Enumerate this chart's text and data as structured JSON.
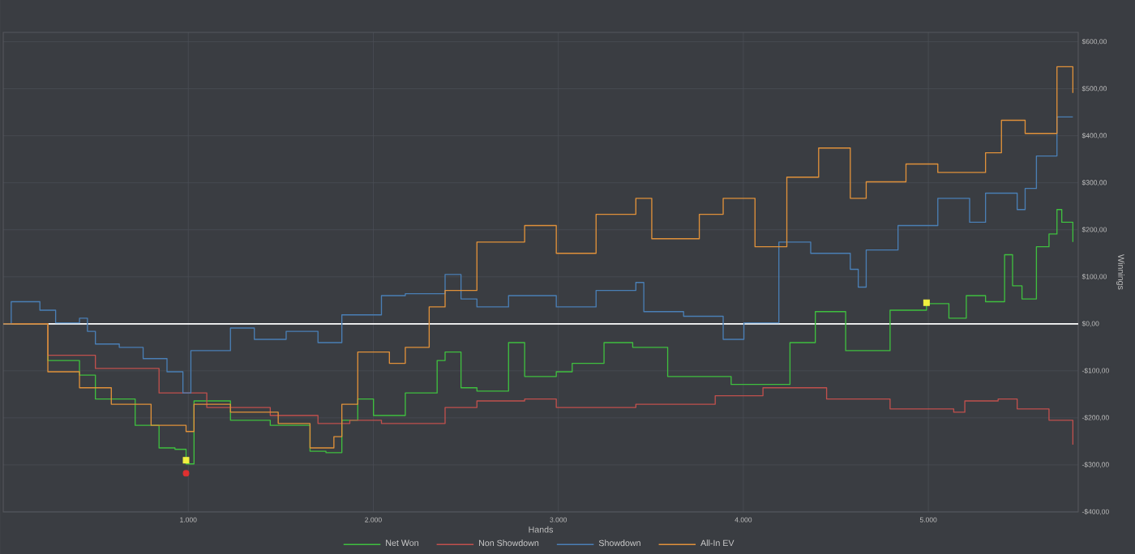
{
  "chart_data": {
    "type": "step",
    "xlabel": "Hands",
    "ylabel": "Winnings",
    "xlim": [
      0,
      5810
    ],
    "ylim": [
      -400,
      620
    ],
    "xticks": [
      {
        "value": 1000,
        "label": "1.000"
      },
      {
        "value": 2000,
        "label": "2.000"
      },
      {
        "value": 3000,
        "label": "3.000"
      },
      {
        "value": 4000,
        "label": "4.000"
      },
      {
        "value": 5000,
        "label": "5.000"
      }
    ],
    "yticks": [
      {
        "value": -400,
        "label": "-$400,00"
      },
      {
        "value": -300,
        "label": "-$300,00"
      },
      {
        "value": -200,
        "label": "-$200,00"
      },
      {
        "value": -100,
        "label": "-$100,00"
      },
      {
        "value": 0,
        "label": "$0,00"
      },
      {
        "value": 100,
        "label": "$100,00"
      },
      {
        "value": 200,
        "label": "$200,00"
      },
      {
        "value": 300,
        "label": "$300,00"
      },
      {
        "value": 400,
        "label": "$400,00"
      },
      {
        "value": 500,
        "label": "$500,00"
      },
      {
        "value": 600,
        "label": "$600,00"
      }
    ],
    "grid": true,
    "legend": "bottom",
    "ref_lines": [
      {
        "axis": "y",
        "value": 0,
        "color": "#ffffff"
      }
    ],
    "series": [
      {
        "name": "Net Won",
        "color": "#3fbf3f",
        "x": [
          0,
          241,
          412,
          498,
          713,
          842,
          928,
          988,
          1031,
          1228,
          1443,
          1658,
          1744,
          1830,
          1916,
          2001,
          2173,
          2345,
          2388,
          2474,
          2560,
          2731,
          2818,
          2989,
          3075,
          3247,
          3402,
          3591,
          3934,
          4252,
          4389,
          4510,
          4553,
          4767,
          4793,
          4990,
          5111,
          5205,
          5309,
          5412,
          5455,
          5506,
          5584,
          5652,
          5695,
          5721,
          5781
        ],
        "values": [
          0,
          -78,
          -109,
          -160,
          -216,
          -264,
          -267,
          -298,
          -164,
          -205,
          -216,
          -271,
          -274,
          -205,
          -160,
          -195,
          -147,
          -78,
          -60,
          -136,
          -143,
          -40,
          -112,
          -102,
          -84,
          -40,
          -50,
          -112,
          -129,
          -40,
          26,
          26,
          -57,
          -57,
          29,
          43,
          12,
          60,
          47,
          147,
          81,
          53,
          164,
          191,
          243,
          216,
          174
        ]
      },
      {
        "name": "Non Showdown",
        "color": "#c0504d",
        "x": [
          0,
          241,
          498,
          842,
          1100,
          1443,
          1701,
          1873,
          2044,
          2388,
          2560,
          2818,
          2989,
          3419,
          3848,
          4106,
          4450,
          4793,
          5137,
          5197,
          5377,
          5480,
          5652,
          5781
        ],
        "values": [
          0,
          -67,
          -95,
          -147,
          -178,
          -195,
          -212,
          -205,
          -212,
          -178,
          -164,
          -160,
          -178,
          -171,
          -153,
          -136,
          -160,
          -181,
          -188,
          -164,
          -160,
          -181,
          -205,
          -257
        ]
      },
      {
        "name": "Showdown",
        "color": "#4a7fb5",
        "x": [
          0,
          43,
          198,
          283,
          412,
          455,
          498,
          627,
          756,
          885,
          971,
          1014,
          1228,
          1357,
          1529,
          1701,
          1830,
          2044,
          2173,
          2388,
          2474,
          2560,
          2731,
          2989,
          3204,
          3419,
          3462,
          3677,
          3891,
          4003,
          4192,
          4364,
          4578,
          4621,
          4664,
          4836,
          5051,
          5223,
          5309,
          5480,
          5523,
          5584,
          5695,
          5781
        ],
        "values": [
          0,
          47,
          29,
          2,
          12,
          -16,
          -43,
          -50,
          -74,
          -102,
          -147,
          -57,
          -9,
          -33,
          -16,
          -40,
          19,
          60,
          64,
          105,
          53,
          36,
          60,
          36,
          71,
          88,
          26,
          16,
          -33,
          2,
          174,
          150,
          116,
          78,
          157,
          209,
          267,
          216,
          278,
          243,
          288,
          357,
          440,
          440
        ]
      },
      {
        "name": "All-In EV",
        "color": "#e0913a",
        "x": [
          0,
          241,
          412,
          584,
          799,
          988,
          1031,
          1228,
          1486,
          1658,
          1787,
          1830,
          1916,
          2087,
          2173,
          2302,
          2388,
          2560,
          2818,
          2989,
          3204,
          3419,
          3505,
          3762,
          3891,
          4063,
          4235,
          4407,
          4578,
          4664,
          4879,
          5051,
          5309,
          5395,
          5523,
          5695,
          5781
        ],
        "values": [
          0,
          -102,
          -136,
          -171,
          -216,
          -229,
          -171,
          -188,
          -212,
          -264,
          -240,
          -171,
          -60,
          -84,
          -50,
          36,
          71,
          174,
          209,
          150,
          233,
          267,
          181,
          233,
          267,
          164,
          312,
          374,
          267,
          302,
          340,
          322,
          364,
          433,
          405,
          547,
          491
        ]
      },
      {
        "type": "scatter",
        "marker": "square",
        "color": "#f0f040",
        "x": [
          988,
          4990
        ],
        "values": [
          -290,
          45
        ]
      },
      {
        "type": "scatter",
        "marker": "circle",
        "color": "#e03030",
        "x": [
          988
        ],
        "values": [
          -318
        ]
      }
    ]
  }
}
